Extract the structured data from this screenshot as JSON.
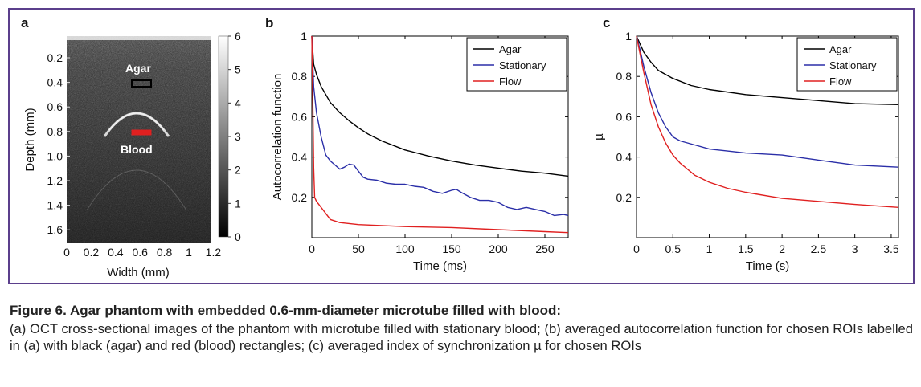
{
  "panels": {
    "a": {
      "letter": "a",
      "xlabel": "Width (mm)",
      "ylabel": "Depth (mm)",
      "xticks": [
        "0",
        "0.2",
        "0.4",
        "0.6",
        "0.8",
        "1",
        "1.2"
      ],
      "yticks": [
        "0.2",
        "0.4",
        "0.6",
        "0.8",
        "1.0",
        "1.2",
        "1.4",
        "1.6"
      ],
      "colorbar_ticks": [
        "0",
        "1",
        "2",
        "3",
        "4",
        "5",
        "6"
      ],
      "roi_agar_label": "Agar",
      "roi_blood_label": "Blood",
      "roi_agar_color": "#000000",
      "roi_blood_color": "#e02020"
    },
    "b": {
      "letter": "b"
    },
    "c": {
      "letter": "c"
    }
  },
  "chart_data": [
    {
      "panel": "b",
      "type": "line",
      "xlabel": "Time (ms)",
      "ylabel": "Autocorrelation function",
      "xlim": [
        0,
        275
      ],
      "ylim": [
        0,
        1
      ],
      "xticks": [
        0,
        50,
        100,
        150,
        200,
        250
      ],
      "yticks": [
        0.2,
        0.4,
        0.6,
        0.8,
        1
      ],
      "ytick_labels": [
        "0.2",
        "0.4",
        "0.6",
        "0.8",
        "1"
      ],
      "legend_position": "top-right",
      "series": [
        {
          "name": "Agar",
          "color": "#000000",
          "x": [
            0,
            2,
            5,
            10,
            20,
            30,
            40,
            50,
            60,
            75,
            100,
            125,
            150,
            175,
            200,
            225,
            250,
            275
          ],
          "y": [
            1.0,
            0.86,
            0.81,
            0.75,
            0.67,
            0.62,
            0.58,
            0.545,
            0.515,
            0.48,
            0.435,
            0.405,
            0.38,
            0.36,
            0.345,
            0.33,
            0.32,
            0.305
          ]
        },
        {
          "name": "Stationary",
          "color": "#2b2fa8",
          "x": [
            0,
            2,
            5,
            10,
            15,
            20,
            25,
            30,
            35,
            40,
            45,
            50,
            55,
            60,
            70,
            80,
            90,
            100,
            110,
            120,
            130,
            140,
            150,
            155,
            160,
            170,
            180,
            190,
            200,
            210,
            220,
            230,
            240,
            250,
            260,
            270,
            275
          ],
          "y": [
            1.0,
            0.75,
            0.62,
            0.5,
            0.41,
            0.38,
            0.36,
            0.34,
            0.35,
            0.365,
            0.36,
            0.33,
            0.3,
            0.29,
            0.285,
            0.27,
            0.265,
            0.265,
            0.255,
            0.25,
            0.23,
            0.22,
            0.235,
            0.24,
            0.225,
            0.2,
            0.185,
            0.185,
            0.175,
            0.15,
            0.14,
            0.15,
            0.14,
            0.13,
            0.11,
            0.115,
            0.11
          ]
        },
        {
          "name": "Flow",
          "color": "#e02020",
          "x": [
            0,
            1,
            2,
            3,
            5,
            10,
            15,
            20,
            30,
            40,
            50,
            75,
            100,
            150,
            200,
            250,
            275
          ],
          "y": [
            1.0,
            0.7,
            0.35,
            0.2,
            0.18,
            0.15,
            0.12,
            0.09,
            0.075,
            0.07,
            0.065,
            0.06,
            0.055,
            0.05,
            0.04,
            0.03,
            0.025
          ]
        }
      ]
    },
    {
      "panel": "c",
      "type": "line",
      "xlabel": "Time (s)",
      "ylabel": "µ",
      "xlim": [
        0,
        3.6
      ],
      "ylim": [
        0,
        1
      ],
      "xticks": [
        0,
        0.5,
        1,
        1.5,
        2,
        2.5,
        3,
        3.5
      ],
      "xtick_labels": [
        "0",
        "0.5",
        "1",
        "1.5",
        "2",
        "2.5",
        "3",
        "3.5"
      ],
      "yticks": [
        0.2,
        0.4,
        0.6,
        0.8,
        1
      ],
      "ytick_labels": [
        "0.2",
        "0.4",
        "0.6",
        "0.8",
        "1"
      ],
      "legend_position": "top-right",
      "series": [
        {
          "name": "Agar",
          "color": "#000000",
          "x": [
            0,
            0.05,
            0.1,
            0.2,
            0.3,
            0.5,
            0.75,
            1,
            1.5,
            2,
            2.5,
            3,
            3.6
          ],
          "y": [
            1.0,
            0.96,
            0.92,
            0.87,
            0.83,
            0.79,
            0.755,
            0.735,
            0.71,
            0.695,
            0.68,
            0.665,
            0.66
          ]
        },
        {
          "name": "Stationary",
          "color": "#2b2fa8",
          "x": [
            0,
            0.05,
            0.1,
            0.2,
            0.3,
            0.4,
            0.5,
            0.6,
            0.8,
            1,
            1.25,
            1.5,
            2,
            2.5,
            3,
            3.6
          ],
          "y": [
            1.0,
            0.93,
            0.85,
            0.72,
            0.62,
            0.55,
            0.5,
            0.48,
            0.46,
            0.44,
            0.43,
            0.42,
            0.41,
            0.385,
            0.36,
            0.35
          ]
        },
        {
          "name": "Flow",
          "color": "#e02020",
          "x": [
            0,
            0.05,
            0.1,
            0.2,
            0.3,
            0.4,
            0.5,
            0.6,
            0.8,
            1,
            1.25,
            1.5,
            2,
            2.5,
            3,
            3.6
          ],
          "y": [
            1.0,
            0.91,
            0.82,
            0.66,
            0.55,
            0.47,
            0.41,
            0.37,
            0.31,
            0.275,
            0.245,
            0.225,
            0.195,
            0.18,
            0.165,
            0.15
          ]
        }
      ]
    }
  ],
  "caption": {
    "title": "Figure 6. Agar phantom with embedded 0.6-mm-diameter microtube filled with blood:",
    "body": "(a) OCT cross-sectional images of the phantom with microtube filled with stationary blood; (b) averaged autocorrelation function for chosen ROIs labelled in (a) with black (agar) and red (blood) rectangles; (c) averaged index of synchronization µ for chosen ROIs"
  },
  "colors": {
    "frame": "#5b3f8c"
  }
}
